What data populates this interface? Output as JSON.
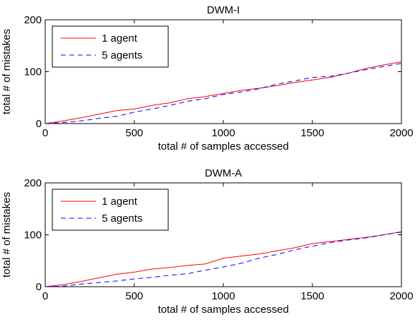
{
  "chart_data": [
    {
      "type": "line",
      "title": "DWM-I",
      "xlabel": "total # of samples accessed",
      "ylabel": "total # of mistakes",
      "xlim": [
        0,
        2000
      ],
      "ylim": [
        0,
        200
      ],
      "xticks": [
        0,
        500,
        1000,
        1500,
        2000
      ],
      "yticks": [
        0,
        100,
        200
      ],
      "legend_position": "top-left",
      "grid": false,
      "series": [
        {
          "name": "1 agent",
          "color": "#ff0000",
          "style": "solid",
          "x": [
            0,
            100,
            200,
            300,
            400,
            500,
            600,
            700,
            800,
            900,
            1000,
            1100,
            1200,
            1300,
            1400,
            1500,
            1600,
            1700,
            1800,
            1900,
            2000
          ],
          "y": [
            0,
            5,
            11,
            18,
            25,
            28,
            35,
            40,
            48,
            52,
            58,
            64,
            68,
            73,
            79,
            84,
            89,
            97,
            106,
            113,
            119
          ]
        },
        {
          "name": "5 agents",
          "color": "#0000ff",
          "style": "dashed",
          "x": [
            0,
            100,
            200,
            300,
            400,
            500,
            600,
            700,
            800,
            900,
            1000,
            1100,
            1200,
            1300,
            1400,
            1500,
            1600,
            1700,
            1800,
            1900,
            2000
          ],
          "y": [
            0,
            2,
            5,
            10,
            14,
            22,
            28,
            35,
            43,
            48,
            56,
            61,
            67,
            76,
            82,
            89,
            91,
            97,
            104,
            110,
            116
          ]
        }
      ]
    },
    {
      "type": "line",
      "title": "DWM-A",
      "xlabel": "total # of samples accessed",
      "ylabel": "total # of mistakes",
      "xlim": [
        0,
        2000
      ],
      "ylim": [
        0,
        200
      ],
      "xticks": [
        0,
        500,
        1000,
        1500,
        2000
      ],
      "yticks": [
        0,
        100,
        200
      ],
      "legend_position": "top-left",
      "grid": false,
      "series": [
        {
          "name": "1 agent",
          "color": "#ff0000",
          "style": "solid",
          "x": [
            0,
            100,
            200,
            300,
            400,
            500,
            600,
            700,
            800,
            900,
            1000,
            1100,
            1200,
            1300,
            1400,
            1500,
            1600,
            1700,
            1800,
            1900,
            2000
          ],
          "y": [
            0,
            4,
            10,
            17,
            24,
            28,
            34,
            37,
            41,
            44,
            55,
            59,
            63,
            69,
            75,
            83,
            87,
            91,
            95,
            100,
            106
          ]
        },
        {
          "name": "5 agents",
          "color": "#0000ff",
          "style": "dashed",
          "x": [
            0,
            100,
            200,
            300,
            400,
            500,
            600,
            700,
            800,
            900,
            1000,
            1100,
            1200,
            1300,
            1400,
            1500,
            1600,
            1700,
            1800,
            1900,
            2000
          ],
          "y": [
            0,
            1,
            5,
            8,
            11,
            15,
            18,
            22,
            25,
            32,
            38,
            45,
            55,
            62,
            71,
            78,
            85,
            90,
            94,
            100,
            105
          ]
        }
      ]
    }
  ]
}
